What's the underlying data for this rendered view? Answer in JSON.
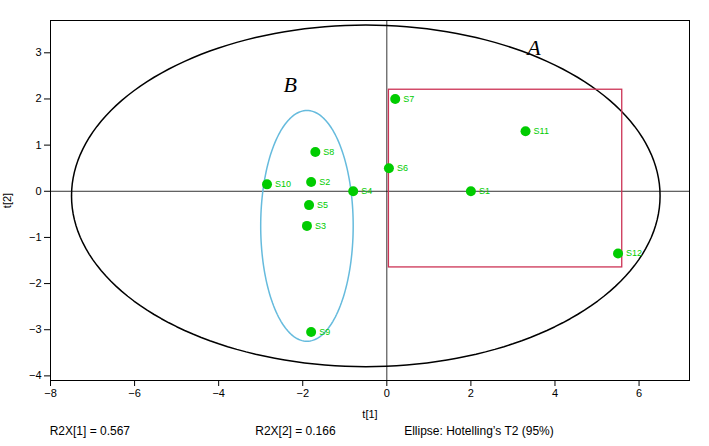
{
  "chart_data": {
    "type": "scatter",
    "xlabel": "t[1]",
    "ylabel": "t[2]",
    "color": "#00cc00",
    "points": [
      {
        "label": "S1",
        "x": 2.0,
        "y": 0.0
      },
      {
        "label": "S2",
        "x": -1.8,
        "y": 0.2
      },
      {
        "label": "S3",
        "x": -1.9,
        "y": -0.75
      },
      {
        "label": "S4",
        "x": -0.8,
        "y": 0.0
      },
      {
        "label": "S5",
        "x": -1.85,
        "y": -0.3
      },
      {
        "label": "S6",
        "x": 0.05,
        "y": 0.5
      },
      {
        "label": "S7",
        "x": 0.2,
        "y": 2.0
      },
      {
        "label": "S8",
        "x": -1.7,
        "y": 0.85
      },
      {
        "label": "S9",
        "x": -1.8,
        "y": -3.05
      },
      {
        "label": "S10",
        "x": -2.85,
        "y": 0.15
      },
      {
        "label": "S11",
        "x": 3.3,
        "y": 1.3
      },
      {
        "label": "S12",
        "x": 5.5,
        "y": -1.35
      }
    ],
    "ellipses": [
      {
        "center_x": -0.5,
        "center_y": -0.1,
        "width": 14.0,
        "height": 7.4,
        "angle": 0,
        "color": "black"
      },
      {
        "center_x": -1.9,
        "center_y": -0.75,
        "width": 2.2,
        "height": 5.0,
        "angle": 0,
        "color": "#66bbdd"
      }
    ],
    "rectangles": [
      {
        "x": 0.05,
        "y": -1.65,
        "width": 5.55,
        "height": 3.85,
        "color": "#cc3355"
      }
    ],
    "reference_lines": {
      "x": 0.0,
      "y": 0.0
    },
    "annotations": [
      {
        "text": "A",
        "x": 3.5,
        "y": 3.1
      },
      {
        "text": "B",
        "x": -2.3,
        "y": 2.3
      }
    ],
    "footer": [
      "R2X[1] = 0.567",
      "R2X[2] = 0.166",
      "Ellipse: Hotelling’s T2 (95%)"
    ],
    "xlim": [
      -8,
      7.2
    ],
    "ylim": [
      -4.1,
      3.7
    ],
    "xticks": [
      -8,
      -6,
      -4,
      -2,
      0,
      2,
      4,
      6
    ],
    "yticks": [
      -4,
      -3,
      -2,
      -1,
      0,
      1,
      2,
      3
    ]
  }
}
